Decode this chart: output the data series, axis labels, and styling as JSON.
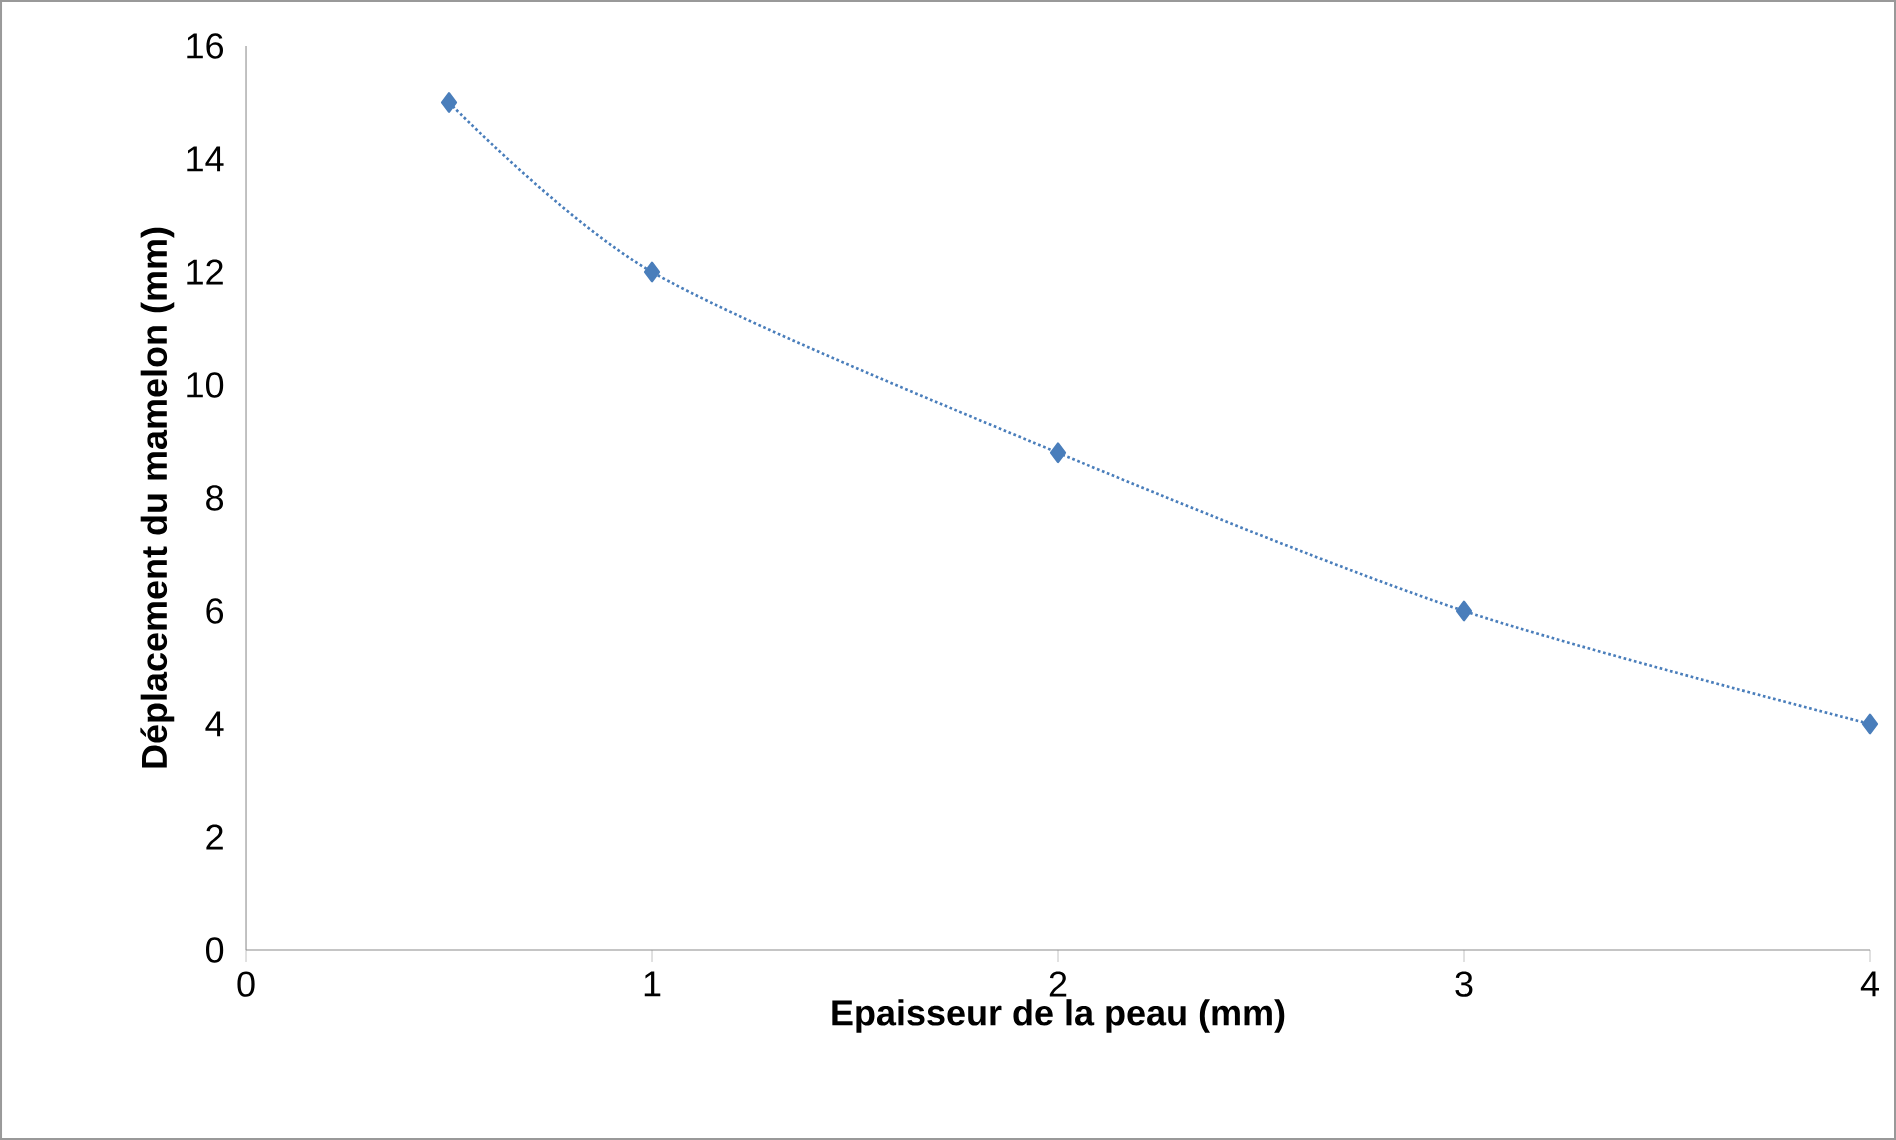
{
  "chart_data": {
    "type": "line",
    "xlabel": "Epaisseur de la peau (mm)",
    "ylabel": "Déplacement du mamelon (mm)",
    "x": [
      0.5,
      1,
      2,
      3,
      4
    ],
    "series": [
      {
        "color": "#4a7ebb",
        "values": [
          15,
          12,
          8.8,
          6,
          4
        ]
      }
    ],
    "marker": "diamond",
    "line_style": "dotted",
    "xlim": [
      0,
      4
    ],
    "xticks": [
      0,
      1,
      2,
      3,
      4
    ],
    "ylim": [
      0,
      16
    ],
    "yticks": [
      0,
      2,
      4,
      6,
      8,
      10,
      12,
      14,
      16
    ],
    "grid": false
  }
}
